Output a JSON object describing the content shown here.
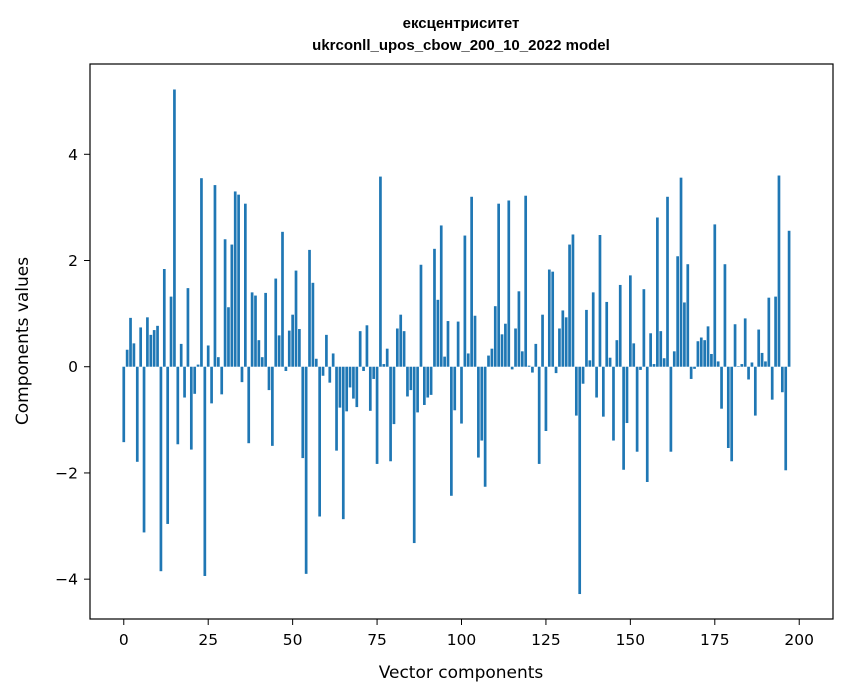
{
  "chart_data": {
    "type": "bar",
    "title": "ексцентриситет",
    "subtitle": "ukrconll_upos_cbow_200_10_2022 model",
    "xlabel": "Vector components",
    "ylabel": "Components values",
    "xlim": [
      -10,
      210
    ],
    "ylim": [
      -4.75,
      5.7
    ],
    "xticks": [
      0,
      25,
      50,
      75,
      100,
      125,
      150,
      175,
      200
    ],
    "yticks": [
      -4,
      -2,
      0,
      2,
      4
    ],
    "ytick_labels": [
      "−4",
      "−2",
      "0",
      "2",
      "4"
    ],
    "grid": false,
    "bar_color": "#1f77b4",
    "values": [
      -1.42,
      0.32,
      0.92,
      0.44,
      -1.79,
      0.74,
      -3.12,
      0.93,
      0.6,
      0.69,
      0.77,
      -3.85,
      1.84,
      -2.96,
      1.32,
      5.22,
      -1.46,
      0.43,
      -0.58,
      1.48,
      -1.56,
      -0.51,
      0.04,
      3.55,
      -3.94,
      0.4,
      -0.69,
      3.42,
      0.18,
      -0.52,
      2.4,
      1.12,
      2.3,
      3.3,
      3.24,
      -0.29,
      3.07,
      -1.44,
      1.4,
      1.34,
      0.5,
      0.18,
      1.39,
      -0.44,
      -1.49,
      1.66,
      0.59,
      2.54,
      -0.08,
      0.68,
      0.98,
      1.81,
      0.71,
      -1.72,
      -3.9,
      2.2,
      1.58,
      0.15,
      -2.82,
      -0.17,
      0.6,
      -0.3,
      0.25,
      -1.58,
      -0.77,
      -2.87,
      -0.84,
      -0.39,
      -0.6,
      -0.76,
      0.67,
      -0.08,
      0.78,
      -0.83,
      -0.23,
      -1.83,
      3.58,
      0.05,
      0.34,
      -1.78,
      -1.08,
      0.72,
      0.98,
      0.67,
      -0.56,
      -0.44,
      -3.32,
      -0.86,
      1.92,
      -0.72,
      -0.58,
      -0.53,
      2.22,
      1.26,
      2.66,
      0.19,
      0.86,
      -2.43,
      -0.82,
      0.85,
      -1.07,
      2.47,
      0.25,
      3.2,
      0.96,
      -1.71,
      -1.39,
      -2.26,
      0.21,
      0.34,
      1.14,
      3.07,
      0.61,
      0.81,
      3.13,
      -0.05,
      0.72,
      1.42,
      0.29,
      3.22,
      0.02,
      -0.11,
      0.43,
      -1.83,
      0.98,
      -1.21,
      1.83,
      1.79,
      -0.12,
      0.72,
      1.06,
      0.93,
      2.3,
      2.49,
      -0.92,
      -4.28,
      -0.32,
      1.07,
      0.12,
      1.4,
      -0.58,
      2.48,
      -0.94,
      1.22,
      0.17,
      -1.39,
      0.5,
      1.54,
      -1.94,
      -1.06,
      1.72,
      0.44,
      -1.6,
      -0.06,
      1.46,
      -2.17,
      0.63,
      0.05,
      2.81,
      0.67,
      0.16,
      3.2,
      -1.6,
      0.29,
      2.08,
      3.56,
      1.21,
      1.93,
      -0.23,
      -0.04,
      0.48,
      0.55,
      0.5,
      0.76,
      0.24,
      2.68,
      0.1,
      -0.79,
      1.93,
      -1.53,
      -1.78,
      0.8,
      0.01,
      0.05,
      0.91,
      -0.24,
      0.08,
      -0.92,
      0.7,
      0.26,
      0.1,
      1.3,
      -0.62,
      1.32,
      3.6,
      -0.48,
      -1.95,
      2.56
    ]
  }
}
